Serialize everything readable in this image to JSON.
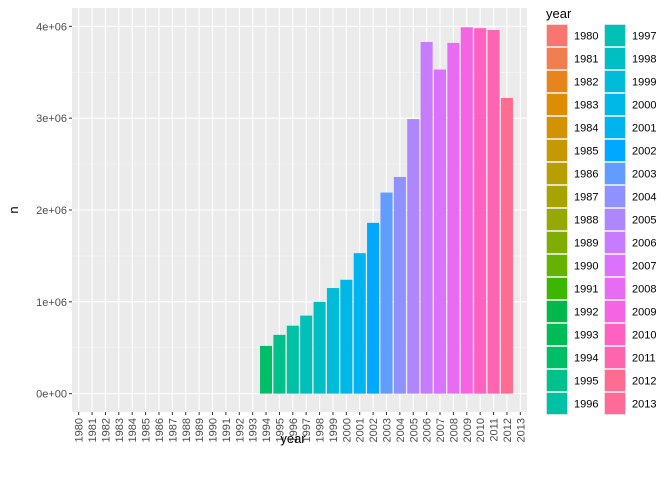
{
  "chart_data": {
    "type": "bar",
    "title": "",
    "xlabel": "year",
    "ylabel": "n",
    "ylim": [
      -200000,
      4200000
    ],
    "y_ticks": [
      0,
      1000000,
      2000000,
      3000000,
      4000000
    ],
    "y_tick_labels": [
      "0e+00",
      "1e+06",
      "2e+06",
      "3e+06",
      "4e+06"
    ],
    "grid": true,
    "legend_placement": "right",
    "legend_title": "year",
    "categories": [
      "1980",
      "1981",
      "1982",
      "1983",
      "1984",
      "1985",
      "1986",
      "1987",
      "1988",
      "1989",
      "1990",
      "1991",
      "1992",
      "1993",
      "1994",
      "1995",
      "1996",
      "1997",
      "1998",
      "1999",
      "2000",
      "2001",
      "2002",
      "2003",
      "2004",
      "2005",
      "2006",
      "2007",
      "2008",
      "2009",
      "2010",
      "2011",
      "2012",
      "2013"
    ],
    "values": [
      0,
      0,
      0,
      0,
      0,
      0,
      0,
      0,
      0,
      0,
      0,
      0,
      0,
      0,
      520000,
      640000,
      740000,
      850000,
      1000000,
      1150000,
      1240000,
      1530000,
      1860000,
      2190000,
      2360000,
      2990000,
      3830000,
      3530000,
      3820000,
      3990000,
      3980000,
      3960000,
      3220000,
      0
    ],
    "colors": [
      "#F8766D",
      "#F17E4F",
      "#E8851A",
      "#DE8C00",
      "#D39200",
      "#C69900",
      "#B79F00",
      "#A7A300",
      "#95A900",
      "#7FAE00",
      "#65B200",
      "#3DB600",
      "#00B94A",
      "#00BC56",
      "#00BE67",
      "#00C08B",
      "#00C1A5",
      "#00C0B8",
      "#00BFC4",
      "#00BCD8",
      "#00B8E7",
      "#00B4F0",
      "#00A9FF",
      "#619CFF",
      "#8F91FF",
      "#AE87FF",
      "#C77CFF",
      "#DB72FB",
      "#E76BF3",
      "#F564E3",
      "#FF61C3",
      "#FF64B0",
      "#FF6C91",
      "#FF6A98"
    ]
  }
}
